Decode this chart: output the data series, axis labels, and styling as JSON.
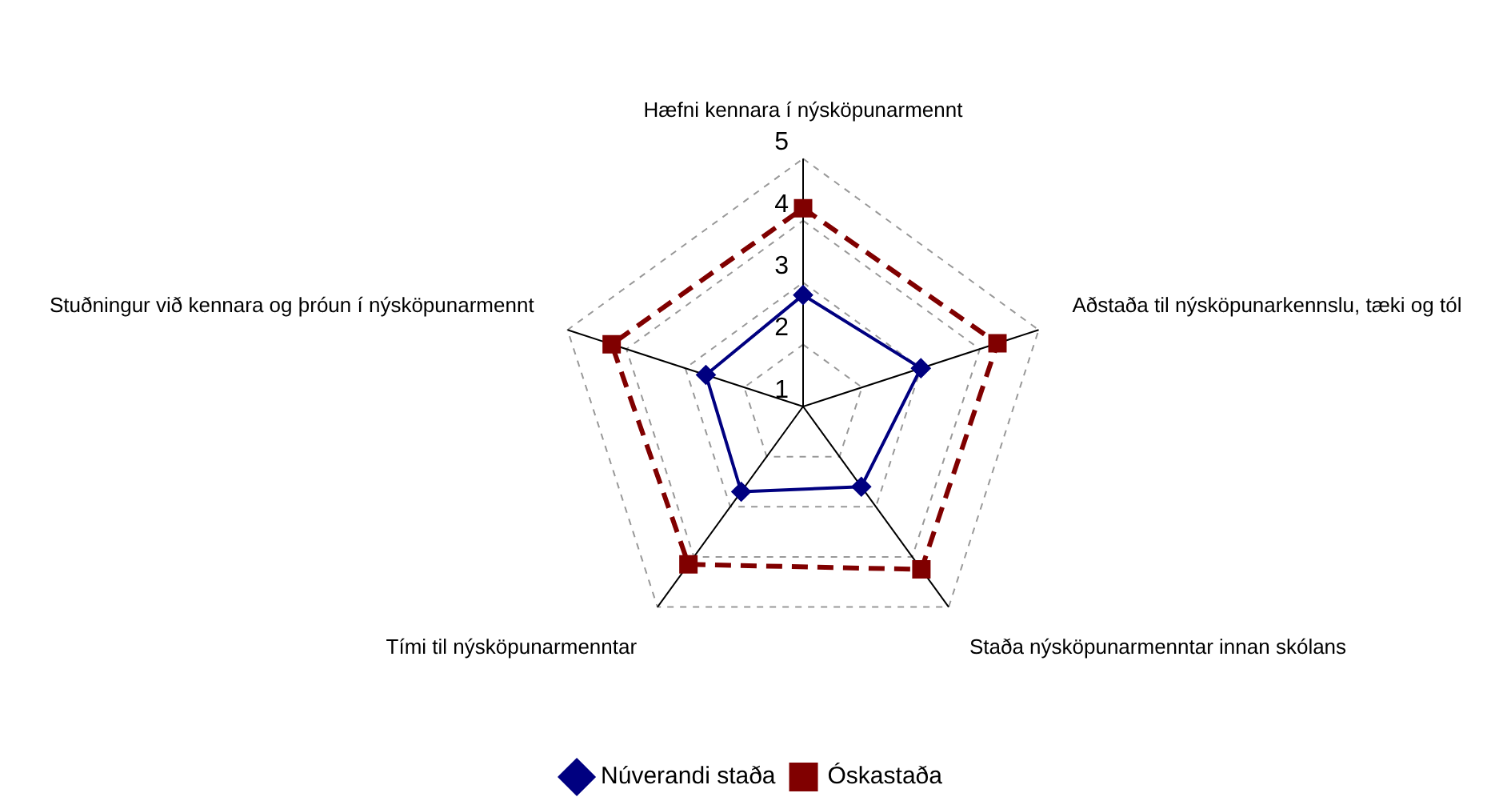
{
  "chart_data": {
    "type": "radar",
    "categories": [
      "Hæfni kennara í nýsköpunarmennt",
      "Aðstaða til nýsköpunarkennslu, tæki og tól",
      "Staða nýsköpunarmenntar innan skólans",
      "Tími til nýsköpunarmenntar",
      "Stuðningur við kennara og þróun í nýsköpunarmennt"
    ],
    "series": [
      {
        "name": "Núverandi staða",
        "color": "#000080",
        "values": [
          2.8,
          3.0,
          2.6,
          2.7,
          2.65
        ],
        "marker": "diamond",
        "line_style": "solid"
      },
      {
        "name": "Óskastaða",
        "color": "#800000",
        "values": [
          4.2,
          4.3,
          4.25,
          4.15,
          4.25
        ],
        "marker": "square",
        "line_style": "dashed"
      }
    ],
    "ylim": [
      1,
      5
    ],
    "yticks": [
      1,
      2,
      3,
      4,
      5
    ],
    "grid": true,
    "legend": "bottom"
  }
}
